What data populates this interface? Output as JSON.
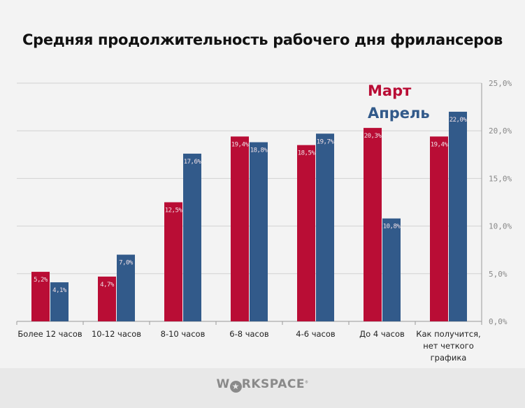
{
  "title": "Средняя продолжительность рабочего дня фрилансеров",
  "chart_data": {
    "type": "bar",
    "title": "Средняя продолжительность рабочего дня фрилансеров",
    "categories": [
      "Более 12 часов",
      "10-12 часов",
      "8-10 часов",
      "6-8 часов",
      "4-6 часов",
      "До 4 часов",
      "Как получится, нет четкого графика"
    ],
    "series": [
      {
        "name": "Март",
        "color": "#b90d35",
        "values": [
          5.2,
          4.7,
          12.5,
          19.4,
          18.5,
          20.3,
          19.4
        ],
        "labels": [
          "5,2%",
          "4,7%",
          "12,5%",
          "19,4%",
          "18,5%",
          "20,3%",
          "19,4%"
        ]
      },
      {
        "name": "Апрель",
        "color": "#325a8a",
        "values": [
          4.1,
          7.0,
          17.6,
          18.8,
          19.7,
          10.8,
          22.0
        ],
        "labels": [
          "4,1%",
          "7,0%",
          "17,6%",
          "18,8%",
          "19,7%",
          "10,8%",
          "22,0%"
        ]
      }
    ],
    "yaxis": {
      "position": "right",
      "ylim": [
        0,
        25
      ],
      "ticks": [
        0,
        5,
        10,
        15,
        20,
        25
      ],
      "tick_labels": [
        "0,0%",
        "5,0%",
        "10,0%",
        "15,0%",
        "20,0%",
        "25,0%"
      ]
    },
    "xlabel": "",
    "ylabel": "",
    "grid": true,
    "legend": "top-right"
  },
  "footer": {
    "logo": "WORKSPACE"
  }
}
